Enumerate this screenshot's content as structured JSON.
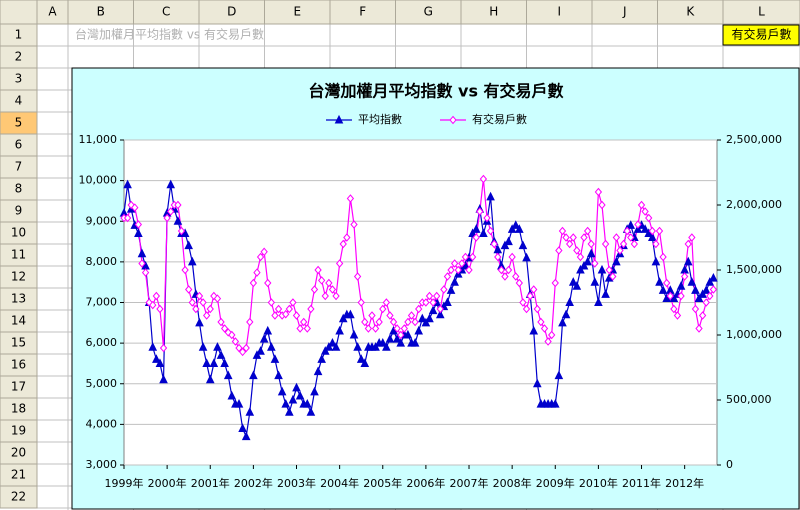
{
  "sheet": {
    "columns": [
      "A",
      "B",
      "C",
      "D",
      "E",
      "F",
      "G",
      "H",
      "I",
      "J",
      "K",
      "L"
    ],
    "rows": [
      1,
      2,
      3,
      4,
      5,
      6,
      7,
      8,
      9,
      10,
      11,
      12,
      13,
      14,
      15,
      16,
      17,
      18,
      19,
      20,
      21,
      22
    ],
    "cell_B1": "台灣加權月平均指數 vs 有交易戶數",
    "cell_L1": "有交易戶數"
  },
  "chart_data": {
    "type": "line",
    "title": "台灣加權月平均指數 vs 有交易戶數",
    "legend": "top",
    "categories": [
      "1999年",
      null,
      null,
      null,
      null,
      null,
      null,
      null,
      null,
      null,
      null,
      null,
      "2000年",
      null,
      null,
      null,
      null,
      null,
      null,
      null,
      null,
      null,
      null,
      null,
      "2001年",
      null,
      null,
      null,
      null,
      null,
      null,
      null,
      null,
      null,
      null,
      null,
      "2002年",
      null,
      null,
      null,
      null,
      null,
      null,
      null,
      null,
      null,
      null,
      null,
      "2003年",
      null,
      null,
      null,
      null,
      null,
      null,
      null,
      null,
      null,
      null,
      null,
      "2004年",
      null,
      null,
      null,
      null,
      null,
      null,
      null,
      null,
      null,
      null,
      null,
      "2005年",
      null,
      null,
      null,
      null,
      null,
      null,
      null,
      null,
      null,
      null,
      null,
      "2006年",
      null,
      null,
      null,
      null,
      null,
      null,
      null,
      null,
      null,
      null,
      null,
      "2007年",
      null,
      null,
      null,
      null,
      null,
      null,
      null,
      null,
      null,
      null,
      null,
      "2008年",
      null,
      null,
      null,
      null,
      null,
      null,
      null,
      null,
      null,
      null,
      null,
      "2009年",
      null,
      null,
      null,
      null,
      null,
      null,
      null,
      null,
      null,
      null,
      null,
      "2010年",
      null,
      null,
      null,
      null,
      null,
      null,
      null,
      null,
      null,
      null,
      null,
      "2011年",
      null,
      null,
      null,
      null,
      null,
      null,
      null,
      null,
      null,
      null,
      null,
      "2012年",
      null,
      null,
      null,
      null,
      null,
      null,
      null,
      null
    ],
    "series": [
      {
        "name": "平均指數",
        "color": "#0000cc",
        "marker": "triangle",
        "values": [
          9200,
          9900,
          9300,
          8900,
          8700,
          8200,
          7900,
          7000,
          5900,
          5600,
          5500,
          5100,
          9200,
          9900,
          9300,
          9000,
          8700,
          8700,
          8400,
          8000,
          7200,
          6500,
          5900,
          5500,
          5100,
          5500,
          5900,
          5700,
          5500,
          5200,
          4700,
          4500,
          4500,
          3900,
          3700,
          4300,
          5200,
          5700,
          5800,
          6100,
          6300,
          5900,
          5600,
          5200,
          4800,
          4500,
          4300,
          4600,
          4900,
          4700,
          4500,
          4500,
          4300,
          4800,
          5300,
          5600,
          5800,
          5900,
          6000,
          5900,
          6300,
          6600,
          6700,
          6700,
          6200,
          5900,
          5600,
          5500,
          5900,
          5900,
          5900,
          6000,
          6000,
          5900,
          6100,
          6300,
          6100,
          6000,
          6200,
          6200,
          6000,
          6000,
          6300,
          6600,
          6500,
          6600,
          6800,
          7000,
          6700,
          6900,
          7000,
          7300,
          7500,
          7700,
          7800,
          7900,
          8100,
          8700,
          8800,
          9300,
          8700,
          9000,
          9600,
          8500,
          8300,
          7900,
          8400,
          8500,
          8800,
          8900,
          8800,
          8400,
          8100,
          7200,
          6300,
          5000,
          4500,
          4500,
          4500,
          4500,
          4500,
          5200,
          6500,
          6700,
          7000,
          7500,
          7400,
          7800,
          7900,
          8000,
          8200,
          7500,
          7000,
          7800,
          7200,
          7600,
          7800,
          8000,
          8200,
          8400,
          8800,
          8900,
          8600,
          8800,
          8900,
          8800,
          8700,
          8600,
          8000,
          7500,
          7300,
          7100,
          7300,
          7100,
          7200,
          7400,
          7800,
          8000,
          7500,
          7300,
          7100,
          7200,
          7300,
          7500,
          7600
        ]
      },
      {
        "name": "有交易戶數",
        "color": "#ff00ff",
        "marker": "diamond",
        "axis": "y2",
        "values": [
          1900000,
          1900000,
          2000000,
          1980000,
          1850000,
          1550000,
          1480000,
          1250000,
          1230000,
          1300000,
          1200000,
          900000,
          1900000,
          1950000,
          2000000,
          2000000,
          1800000,
          1500000,
          1350000,
          1250000,
          1200000,
          1300000,
          1250000,
          1150000,
          1200000,
          1300000,
          1280000,
          1100000,
          1050000,
          1020000,
          1000000,
          950000,
          900000,
          870000,
          900000,
          1100000,
          1400000,
          1480000,
          1600000,
          1640000,
          1400000,
          1250000,
          1150000,
          1200000,
          1150000,
          1160000,
          1200000,
          1250000,
          1150000,
          1050000,
          1100000,
          1050000,
          1200000,
          1350000,
          1500000,
          1420000,
          1300000,
          1400000,
          1350000,
          1300000,
          1550000,
          1700000,
          1750000,
          2050000,
          1850000,
          1450000,
          1250000,
          1100000,
          1050000,
          1150000,
          1050000,
          1100000,
          1200000,
          1250000,
          1150000,
          1100000,
          1050000,
          1000000,
          1050000,
          1100000,
          1150000,
          1100000,
          1200000,
          1250000,
          1250000,
          1300000,
          1250000,
          1300000,
          1200000,
          1350000,
          1450000,
          1500000,
          1550000,
          1500000,
          1550000,
          1600000,
          1500000,
          1600000,
          1750000,
          1950000,
          2200000,
          1900000,
          1800000,
          1700000,
          1600000,
          1500000,
          1450000,
          1500000,
          1600000,
          1450000,
          1400000,
          1250000,
          1200000,
          1300000,
          1350000,
          1200000,
          1100000,
          1050000,
          950000,
          1000000,
          1400000,
          1650000,
          1800000,
          1750000,
          1700000,
          1750000,
          1650000,
          1600000,
          1750000,
          1800000,
          1700000,
          1550000,
          2100000,
          2000000,
          1700000,
          1500000,
          1450000,
          1750000,
          1650000,
          1700000,
          1800000,
          1750000,
          1700000,
          1850000,
          2000000,
          1950000,
          1900000,
          1800000,
          1700000,
          1800000,
          1600000,
          1400000,
          1300000,
          1200000,
          1150000,
          1300000,
          1450000,
          1700000,
          1750000,
          1200000,
          1050000,
          1150000,
          1250000,
          1300000,
          1350000
        ]
      }
    ],
    "ylim": [
      3000,
      11000
    ],
    "yticks": [
      {
        "value": 3000,
        "label": "3,000"
      },
      {
        "value": 4000,
        "label": "4,000"
      },
      {
        "value": 5000,
        "label": "5,000"
      },
      {
        "value": 6000,
        "label": "6,000"
      },
      {
        "value": 7000,
        "label": "7,000"
      },
      {
        "value": 8000,
        "label": "8,000"
      },
      {
        "value": 9000,
        "label": "9,000"
      },
      {
        "value": 10000,
        "label": "10,000"
      },
      {
        "value": 11000,
        "label": "11,000"
      }
    ],
    "y2lim": [
      0,
      2500000
    ],
    "y2ticks": [
      0,
      {
        "value": 500000,
        "label": "500,000"
      },
      {
        "value": 1000000,
        "label": "1,000,000"
      },
      {
        "value": 1500000,
        "label": "1,500,000"
      },
      {
        "value": 2000000,
        "label": "2,000,000"
      },
      {
        "value": 2500000,
        "label": "2,500,000"
      }
    ],
    "grid": true
  }
}
